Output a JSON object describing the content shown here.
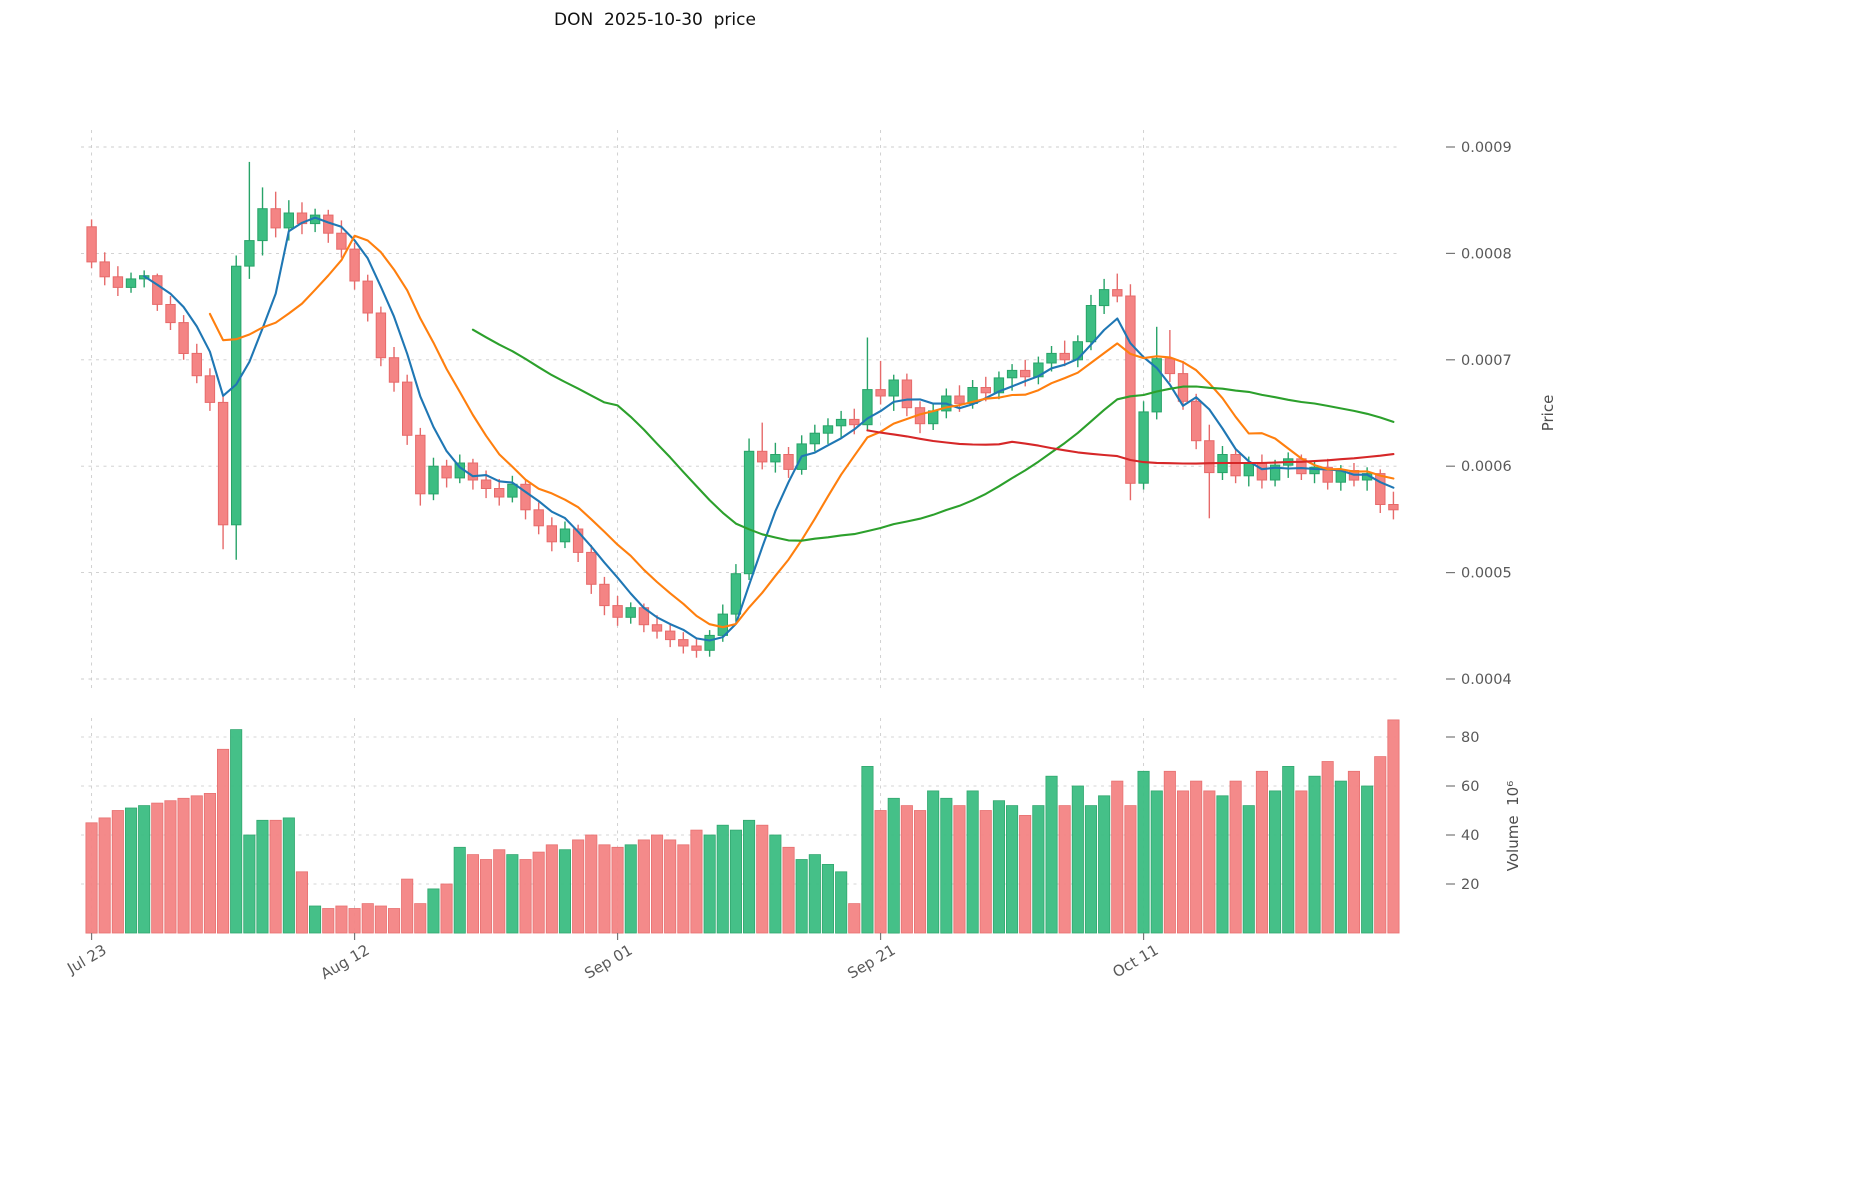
{
  "chart_data": {
    "type": "candlestick_with_volume",
    "title": "DON  2025-10-30  price",
    "ylabel": "Price",
    "ylabel_volume": "Volume  10⁶",
    "price_unit": 1e-06,
    "volume_unit_label": "10^6",
    "y_ticks": [
      0.0009,
      0.0008,
      0.0007,
      0.0006,
      0.0005,
      0.0004
    ],
    "volume_ticks": [
      20,
      40,
      60,
      80
    ],
    "x_tick_indices": [
      0,
      20,
      40,
      60,
      80
    ],
    "x_tick_labels": [
      "Jul 23",
      "Aug 12",
      "Sep 01",
      "Sep 21",
      "Oct 11"
    ],
    "ylim": [
      0.000395,
      0.00092
    ],
    "volume_ylim": [
      0,
      88
    ],
    "grid": true,
    "legend_position": "none",
    "moving_averages": [
      {
        "window": 5,
        "color": "#1f77b4"
      },
      {
        "window": 10,
        "color": "#ff7f0e"
      },
      {
        "window": 30,
        "color": "#2ca02c"
      },
      {
        "window": 60,
        "color": "#d62728"
      }
    ],
    "colors": {
      "up_fill": "#3cbd82",
      "up_border": "#27a368",
      "down_fill": "#f48484",
      "down_border": "#e66a6a",
      "grid": "#cccccc",
      "tick_label": "#595959",
      "tick_mark": "#767676",
      "title": "#111111"
    },
    "columns": [
      "date",
      "open",
      "high",
      "low",
      "close",
      "volume"
    ],
    "candles": [
      [
        "2025-07-23",
        825,
        832,
        786,
        792,
        45
      ],
      [
        "2025-07-24",
        792,
        801,
        770,
        778,
        47
      ],
      [
        "2025-07-25",
        778,
        788,
        760,
        768,
        50
      ],
      [
        "2025-07-26",
        768,
        782,
        763,
        776,
        51
      ],
      [
        "2025-07-27",
        776,
        784,
        768,
        779,
        52
      ],
      [
        "2025-07-28",
        779,
        781,
        746,
        752,
        53
      ],
      [
        "2025-07-29",
        752,
        760,
        728,
        735,
        54
      ],
      [
        "2025-07-30",
        735,
        742,
        700,
        706,
        55
      ],
      [
        "2025-07-31",
        706,
        715,
        678,
        685,
        56
      ],
      [
        "2025-08-01",
        685,
        692,
        652,
        660,
        57
      ],
      [
        "2025-08-02",
        660,
        666,
        522,
        545,
        75
      ],
      [
        "2025-08-03",
        545,
        798,
        512,
        788,
        83
      ],
      [
        "2025-08-04",
        788,
        886,
        776,
        812,
        40
      ],
      [
        "2025-08-05",
        812,
        862,
        798,
        842,
        46
      ],
      [
        "2025-08-06",
        842,
        858,
        815,
        824,
        46
      ],
      [
        "2025-08-07",
        824,
        850,
        812,
        838,
        47
      ],
      [
        "2025-08-08",
        838,
        848,
        818,
        828,
        25
      ],
      [
        "2025-08-09",
        828,
        842,
        820,
        836,
        11
      ],
      [
        "2025-08-10",
        836,
        841,
        810,
        819,
        10
      ],
      [
        "2025-08-11",
        819,
        831,
        796,
        804,
        11
      ],
      [
        "2025-08-12",
        804,
        810,
        766,
        774,
        10
      ],
      [
        "2025-08-13",
        774,
        780,
        736,
        744,
        12
      ],
      [
        "2025-08-14",
        744,
        750,
        694,
        702,
        11
      ],
      [
        "2025-08-15",
        702,
        712,
        670,
        679,
        10
      ],
      [
        "2025-08-16",
        679,
        686,
        620,
        629,
        22
      ],
      [
        "2025-08-17",
        629,
        636,
        563,
        574,
        12
      ],
      [
        "2025-08-18",
        574,
        608,
        568,
        600,
        18
      ],
      [
        "2025-08-19",
        600,
        606,
        580,
        589,
        20
      ],
      [
        "2025-08-20",
        589,
        611,
        584,
        603,
        35
      ],
      [
        "2025-08-21",
        603,
        607,
        578,
        587,
        32
      ],
      [
        "2025-08-22",
        587,
        596,
        570,
        579,
        30
      ],
      [
        "2025-08-23",
        579,
        588,
        563,
        571,
        34
      ],
      [
        "2025-08-24",
        571,
        591,
        566,
        583,
        32
      ],
      [
        "2025-08-25",
        583,
        587,
        550,
        559,
        30
      ],
      [
        "2025-08-26",
        559,
        566,
        536,
        544,
        33
      ],
      [
        "2025-08-27",
        544,
        552,
        520,
        529,
        36
      ],
      [
        "2025-08-28",
        529,
        548,
        523,
        541,
        34
      ],
      [
        "2025-08-29",
        541,
        545,
        510,
        519,
        38
      ],
      [
        "2025-08-30",
        519,
        526,
        480,
        489,
        40
      ],
      [
        "2025-08-31",
        489,
        496,
        460,
        469,
        36
      ],
      [
        "2025-09-01",
        469,
        478,
        450,
        458,
        35
      ],
      [
        "2025-09-02",
        458,
        472,
        452,
        467,
        36
      ],
      [
        "2025-09-03",
        467,
        471,
        444,
        451,
        38
      ],
      [
        "2025-09-04",
        451,
        460,
        438,
        445,
        40
      ],
      [
        "2025-09-05",
        445,
        452,
        430,
        437,
        38
      ],
      [
        "2025-09-06",
        437,
        444,
        424,
        431,
        36
      ],
      [
        "2025-09-07",
        431,
        438,
        420,
        427,
        42
      ],
      [
        "2025-09-08",
        427,
        446,
        421,
        441,
        40
      ],
      [
        "2025-09-09",
        441,
        470,
        435,
        461,
        44
      ],
      [
        "2025-09-10",
        461,
        508,
        454,
        499,
        42
      ],
      [
        "2025-09-11",
        499,
        626,
        493,
        614,
        46
      ],
      [
        "2025-09-12",
        614,
        641,
        597,
        604,
        44
      ],
      [
        "2025-09-13",
        604,
        622,
        594,
        611,
        40
      ],
      [
        "2025-09-14",
        611,
        618,
        589,
        597,
        35
      ],
      [
        "2025-09-15",
        597,
        629,
        592,
        621,
        30
      ],
      [
        "2025-09-16",
        621,
        639,
        614,
        631,
        32
      ],
      [
        "2025-09-17",
        631,
        645,
        621,
        638,
        28
      ],
      [
        "2025-09-18",
        638,
        652,
        627,
        644,
        25
      ],
      [
        "2025-09-19",
        644,
        654,
        630,
        639,
        12
      ],
      [
        "2025-09-20",
        639,
        721,
        633,
        672,
        68
      ],
      [
        "2025-09-21",
        672,
        699,
        658,
        666,
        50
      ],
      [
        "2025-09-22",
        666,
        686,
        652,
        681,
        55
      ],
      [
        "2025-09-23",
        681,
        687,
        647,
        655,
        52
      ],
      [
        "2025-09-24",
        655,
        661,
        631,
        640,
        50
      ],
      [
        "2025-09-25",
        640,
        659,
        634,
        652,
        58
      ],
      [
        "2025-09-26",
        652,
        673,
        645,
        666,
        55
      ],
      [
        "2025-09-27",
        666,
        676,
        651,
        659,
        52
      ],
      [
        "2025-09-28",
        659,
        681,
        654,
        674,
        58
      ],
      [
        "2025-09-29",
        674,
        684,
        661,
        669,
        50
      ],
      [
        "2025-09-30",
        669,
        689,
        663,
        683,
        54
      ],
      [
        "2025-10-01",
        683,
        696,
        671,
        690,
        52
      ],
      [
        "2025-10-02",
        690,
        700,
        675,
        684,
        48
      ],
      [
        "2025-10-03",
        684,
        703,
        677,
        697,
        52
      ],
      [
        "2025-10-04",
        697,
        713,
        689,
        706,
        64
      ],
      [
        "2025-10-05",
        706,
        718,
        694,
        700,
        52
      ],
      [
        "2025-10-06",
        700,
        723,
        693,
        717,
        60
      ],
      [
        "2025-10-07",
        717,
        761,
        709,
        751,
        52
      ],
      [
        "2025-10-08",
        751,
        776,
        743,
        766,
        56
      ],
      [
        "2025-10-09",
        766,
        781,
        754,
        760,
        62
      ],
      [
        "2025-10-10",
        760,
        771,
        568,
        584,
        52
      ],
      [
        "2025-10-11",
        584,
        661,
        578,
        651,
        66
      ],
      [
        "2025-10-12",
        651,
        731,
        644,
        701,
        58
      ],
      [
        "2025-10-13",
        701,
        728,
        679,
        687,
        66
      ],
      [
        "2025-10-14",
        687,
        699,
        653,
        661,
        58
      ],
      [
        "2025-10-15",
        661,
        668,
        616,
        624,
        62
      ],
      [
        "2025-10-16",
        624,
        639,
        551,
        594,
        58
      ],
      [
        "2025-10-17",
        594,
        619,
        587,
        611,
        56
      ],
      [
        "2025-10-18",
        611,
        617,
        584,
        591,
        62
      ],
      [
        "2025-10-19",
        591,
        609,
        581,
        603,
        52
      ],
      [
        "2025-10-20",
        603,
        611,
        579,
        587,
        66
      ],
      [
        "2025-10-21",
        587,
        606,
        581,
        601,
        58
      ],
      [
        "2025-10-22",
        601,
        613,
        589,
        607,
        68
      ],
      [
        "2025-10-23",
        607,
        611,
        587,
        593,
        58
      ],
      [
        "2025-10-24",
        593,
        605,
        584,
        599,
        64
      ],
      [
        "2025-10-25",
        599,
        607,
        578,
        585,
        70
      ],
      [
        "2025-10-26",
        585,
        601,
        577,
        596,
        62
      ],
      [
        "2025-10-27",
        596,
        603,
        581,
        587,
        66
      ],
      [
        "2025-10-28",
        587,
        599,
        577,
        593,
        60
      ],
      [
        "2025-10-29",
        593,
        597,
        556,
        564,
        72
      ],
      [
        "2025-10-30",
        564,
        576,
        550,
        559,
        87
      ]
    ]
  }
}
